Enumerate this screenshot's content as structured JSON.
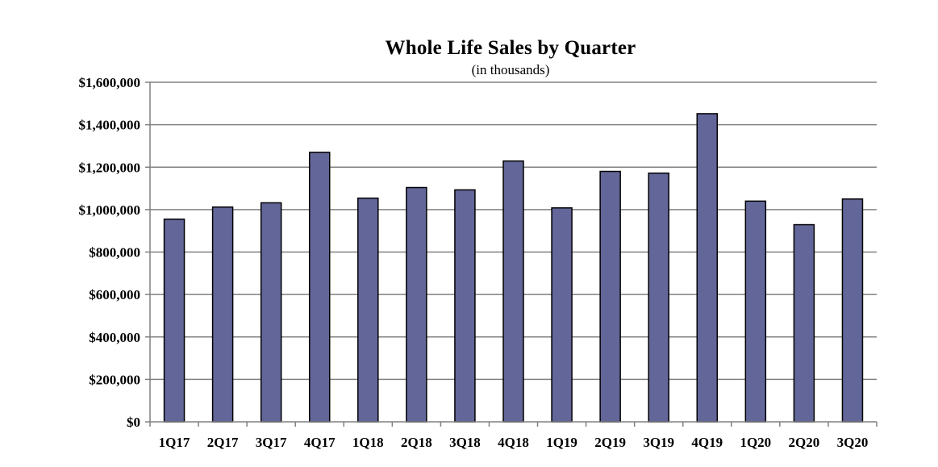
{
  "chart_data": {
    "type": "bar",
    "title": "Whole Life Sales by Quarter",
    "subtitle": "(in thousands)",
    "xlabel": "",
    "ylabel": "",
    "categories": [
      "1Q17",
      "2Q17",
      "3Q17",
      "4Q17",
      "1Q18",
      "2Q18",
      "3Q18",
      "4Q18",
      "1Q19",
      "2Q19",
      "3Q19",
      "4Q19",
      "1Q20",
      "2Q20",
      "3Q20"
    ],
    "values": [
      955000,
      1012000,
      1032000,
      1270000,
      1054000,
      1104000,
      1093000,
      1229000,
      1008000,
      1180000,
      1172000,
      1452000,
      1040000,
      929000,
      1050000
    ],
    "ylim": [
      0,
      1600000
    ],
    "yticks": [
      0,
      200000,
      400000,
      600000,
      800000,
      1000000,
      1200000,
      1400000,
      1600000
    ],
    "ytick_labels": [
      "$0",
      "$200,000",
      "$400,000",
      "$600,000",
      "$800,000",
      "$1,000,000",
      "$1,200,000",
      "$1,400,000",
      "$1,600,000"
    ],
    "grid": true,
    "legend": "none",
    "colors": {
      "bar_fill": "#636699",
      "bar_stroke": "#000000",
      "grid": "#808080",
      "axis": "#808080"
    }
  }
}
